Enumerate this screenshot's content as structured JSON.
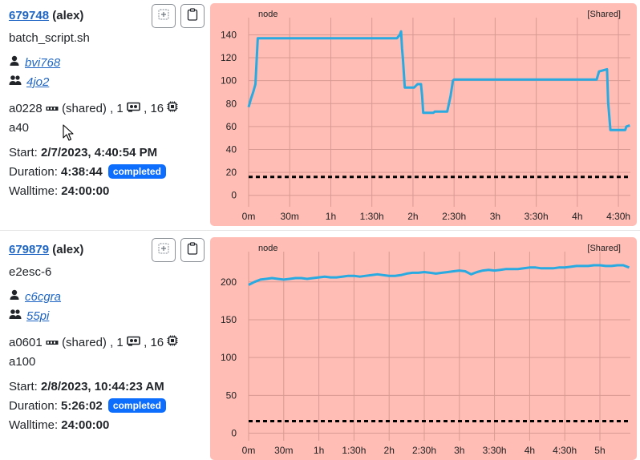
{
  "jobs": [
    {
      "job_id": "679748",
      "user": "(alex)",
      "name": "batch_script.sh",
      "project": "bvi768",
      "group": "4jo2",
      "node": "a0228",
      "shared": "(shared)",
      "gpus_sep": ", 1",
      "cores_sep": ", 16",
      "gpu_type": "a40",
      "start_label": "Start:",
      "start": "2/7/2023, 4:40:54 PM",
      "duration_label": "Duration:",
      "duration": "4:38:44",
      "status": "completed",
      "walltime_label": "Walltime:",
      "walltime": "24:00:00"
    },
    {
      "job_id": "679879",
      "user": "(alex)",
      "name": "e2esc-6",
      "project": "c6cgra",
      "group": "55pi",
      "node": "a0601",
      "shared": "(shared)",
      "gpus_sep": ", 1",
      "cores_sep": ", 16",
      "gpu_type": "a100",
      "start_label": "Start:",
      "start": "2/8/2023, 10:44:23 AM",
      "duration_label": "Duration:",
      "duration": "5:26:02",
      "status": "completed",
      "walltime_label": "Walltime:",
      "walltime": "24:00:00"
    }
  ],
  "icons": {
    "user": "person-icon",
    "group": "group-icon",
    "node": "memory-icon",
    "gpu": "gpu-icon",
    "cores": "cpu-icon",
    "select": "select-plus-icon",
    "clipboard": "clipboard-icon"
  },
  "colors": {
    "link": "#1f66c4",
    "badge": "#0d6efd",
    "chart_bg": "#ffbdb5",
    "series": "#29aae1",
    "threshold": "#000000"
  },
  "chart_data": [
    {
      "type": "line",
      "label_left": "node",
      "label_right": "[Shared]",
      "ylim": [
        -10,
        155
      ],
      "yticks": [
        0,
        20,
        40,
        60,
        80,
        100,
        120,
        140
      ],
      "xlim": [
        0,
        16724
      ],
      "xticks": [
        0,
        1800,
        3600,
        5400,
        7200,
        9000,
        10800,
        12600,
        14400,
        16200
      ],
      "xtick_labels": [
        "0m",
        "30m",
        "1h",
        "1:30h",
        "2h",
        "2:30h",
        "3h",
        "3:30h",
        "4h",
        "4:30h"
      ],
      "grid": true,
      "threshold": 16,
      "series": [
        {
          "x": [
            0,
            100,
            200,
            300,
            400,
            6300,
            6500,
            6620,
            6680,
            6720,
            6760,
            6840,
            7200,
            7250,
            7400,
            7550,
            7600,
            7650,
            7700,
            8100,
            8150,
            8700,
            8850,
            8950,
            9000,
            15200,
            15250,
            15350,
            15700,
            15750,
            15850,
            16000,
            16500,
            16550,
            16700
          ],
          "y": [
            77,
            84,
            90,
            97,
            137,
            137,
            137,
            140,
            143,
            128,
            119,
            94,
            94,
            94,
            97,
            97,
            87,
            72,
            72,
            72,
            73,
            73,
            87,
            100,
            101,
            101,
            101,
            108,
            110,
            81,
            57,
            57,
            57,
            60,
            61
          ]
        }
      ]
    },
    {
      "type": "line",
      "label_left": "node",
      "label_right": "[Shared]",
      "ylim": [
        -10,
        240
      ],
      "yticks": [
        0,
        50,
        100,
        150,
        200
      ],
      "xlim": [
        0,
        19562
      ],
      "xticks": [
        0,
        1800,
        3600,
        5400,
        7200,
        9000,
        10800,
        12600,
        14400,
        16200,
        18000
      ],
      "xtick_labels": [
        "0m",
        "30m",
        "1h",
        "1:30h",
        "2h",
        "2:30h",
        "3h",
        "3:30h",
        "4h",
        "4:30h",
        "5h"
      ],
      "grid": true,
      "threshold": 16,
      "series": [
        {
          "x": [
            0,
            300,
            600,
            900,
            1200,
            1500,
            1800,
            2100,
            2400,
            2700,
            3000,
            3300,
            3600,
            3900,
            4200,
            4500,
            4800,
            5100,
            5400,
            5700,
            6000,
            6300,
            6600,
            6900,
            7200,
            7500,
            7800,
            8100,
            8400,
            8700,
            9000,
            9300,
            9600,
            9900,
            10200,
            10500,
            10800,
            11100,
            11400,
            11700,
            12000,
            12300,
            12600,
            12900,
            13200,
            13500,
            13800,
            14100,
            14400,
            14700,
            15000,
            15300,
            15600,
            15900,
            16200,
            16500,
            16800,
            17100,
            17400,
            17700,
            18000,
            18300,
            18600,
            18900,
            19200,
            19500
          ],
          "y": [
            196,
            200,
            203,
            204,
            205,
            204,
            203,
            204,
            205,
            205,
            204,
            205,
            206,
            207,
            206,
            206,
            207,
            208,
            208,
            207,
            208,
            209,
            210,
            209,
            208,
            208,
            209,
            211,
            212,
            212,
            213,
            212,
            211,
            212,
            213,
            214,
            215,
            214,
            210,
            213,
            215,
            216,
            215,
            216,
            217,
            217,
            217,
            218,
            219,
            219,
            218,
            218,
            218,
            219,
            219,
            220,
            221,
            221,
            221,
            222,
            222,
            221,
            221,
            222,
            222,
            219
          ]
        }
      ]
    }
  ]
}
